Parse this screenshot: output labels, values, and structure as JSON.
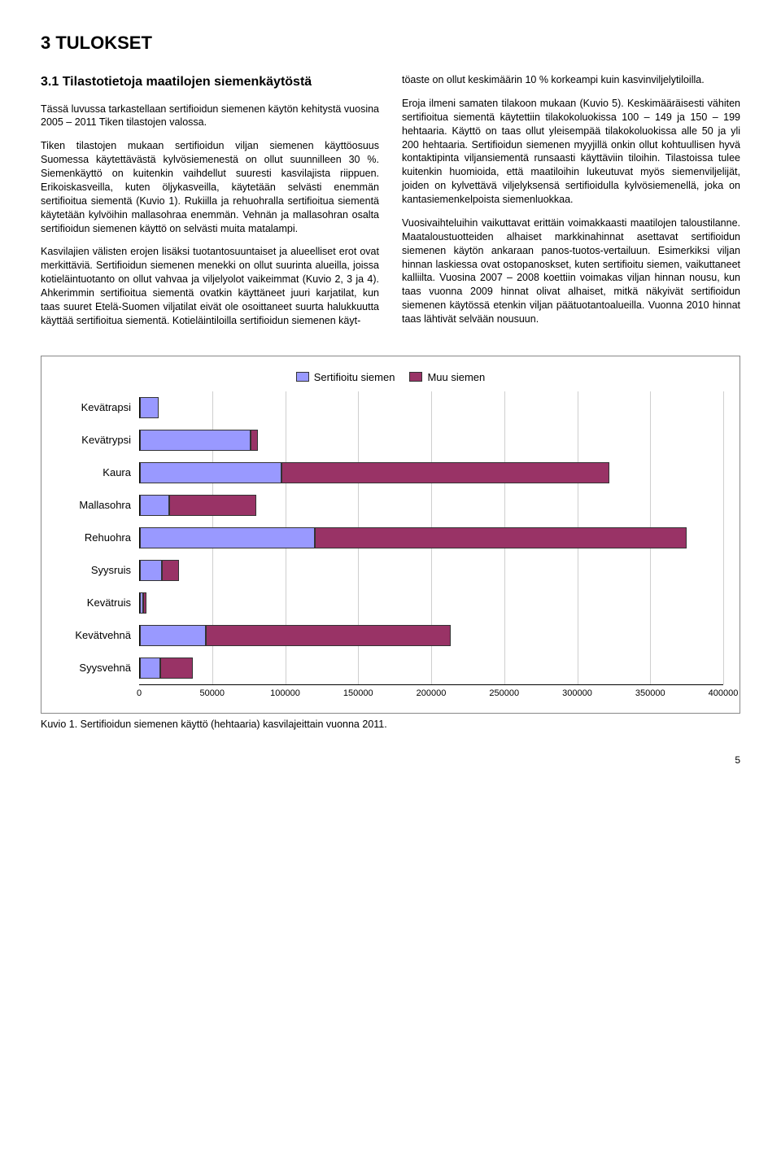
{
  "title": "3 TULOKSET",
  "section_title": "3.1 Tilastotietoja maatilojen siemenkäytöstä",
  "intro": "Tässä luvussa tarkastellaan sertifioidun siemenen käytön kehitystä vuosina 2005 – 2011 Tiken tilastojen valossa.",
  "left_col": {
    "p1": "Tiken tilastojen mukaan sertifioidun viljan siemenen käyttöosuus Suomessa käytettävästä kylvösiemenestä on ollut suunnilleen 30 %. Siemenkäyttö on kuitenkin vaihdellut suuresti kasvilajista riippuen. Erikoiskasveilla, kuten öljykasveilla, käytetään selvästi enemmän sertifioitua siementä (Kuvio 1). Rukiilla ja rehuohralla sertifioitua siementä käytetään kylvöihin mallasohraa enemmän. Vehnän ja mallasohran osalta sertifioidun siemenen käyttö on selvästi muita matalampi.",
    "p2": "Kasvilajien välisten erojen lisäksi tuotantosuuntaiset ja alueelliset erot ovat merkittäviä. Sertifioidun siemenen menekki on ollut suurinta alueilla, joissa kotieläintuotanto on ollut vahvaa ja viljelyolot vaikeimmat (Kuvio 2, 3 ja 4). Ahkerimmin sertifioitua siementä ovatkin käyttäneet juuri karjatilat, kun taas suuret Etelä-Suomen viljatilat eivät ole osoittaneet suurta halukkuutta käyttää sertifioitua siementä. Kotieläintiloilla sertifioidun siemenen käyt-"
  },
  "right_col": {
    "p1": "töaste on ollut keskimäärin 10 % korkeampi kuin kasvinviljelytiloilla.",
    "p2": "Eroja ilmeni samaten tilakoon mukaan (Kuvio 5). Keskimääräisesti vähiten sertifioitua siementä käytettiin tilakokoluokissa 100 – 149 ja 150 – 199 hehtaaria. Käyttö on taas ollut yleisempää tilakokoluokissa alle 50 ja yli 200 hehtaaria. Sertifioidun siemenen myyjillä onkin ollut kohtuullisen hyvä kontaktipinta viljansiementä runsaasti käyttäviin tiloihin. Tilastoissa tulee kuitenkin huomioida, että maatiloihin lukeutuvat myös siemenviljelijät, joiden on kylvettävä viljelyksensä sertifioidulla kylvösiemenellä, joka on kantasiemenkelpoista siemenluokkaa.",
    "p3": "Vuosivaihteluihin vaikuttavat erittäin voimakkaasti maatilojen taloustilanne. Maataloustuotteiden alhaiset markkinahinnat asettavat sertifioidun siemenen käytön ankaraan panos-tuotos-vertailuun. Esimerkiksi viljan hinnan laskiessa ovat ostopanoskset, kuten sertifioitu siemen, vaikuttaneet kalliilta. Vuosina 2007 – 2008 koettiin voimakas viljan hinnan nousu, kun taas vuonna 2009 hinnat olivat alhaiset, mitkä näkyivät sertifioidun siemenen käytössä etenkin viljan päätuotantoalueilla. Vuonna 2010 hinnat taas lähtivät selvään nousuun."
  },
  "chart": {
    "type": "stacked-horizontal-bar",
    "legend": [
      {
        "label": "Sertifioitu siemen",
        "color": "#9999ff"
      },
      {
        "label": "Muu siemen",
        "color": "#993366"
      }
    ],
    "categories": [
      "Kevätrapsi",
      "Kevätrypsi",
      "Kaura",
      "Mallasohra",
      "Rehuohra",
      "Syysruis",
      "Kevätruis",
      "Kevätvehnä",
      "Syysvehnä"
    ],
    "series": {
      "sertifioitu": [
        13000,
        76000,
        97000,
        20000,
        120000,
        15000,
        2500,
        45000,
        14000
      ],
      "muu": [
        0,
        5000,
        225000,
        60000,
        255000,
        12000,
        2000,
        168000,
        22000
      ]
    },
    "xmax": 400000,
    "xtick_step": 50000,
    "bar_colors": {
      "sertifioitu": "#9999ff",
      "muu": "#993366"
    },
    "border_color": "#333333",
    "grid_color": "#cfcfcf",
    "background_color": "#ffffff",
    "label_fontsize": 13,
    "tick_fontsize": 11
  },
  "caption": "Kuvio 1. Sertifioidun siemenen käyttö (hehtaaria) kasvilajeittain vuonna 2011.",
  "page_number": "5"
}
